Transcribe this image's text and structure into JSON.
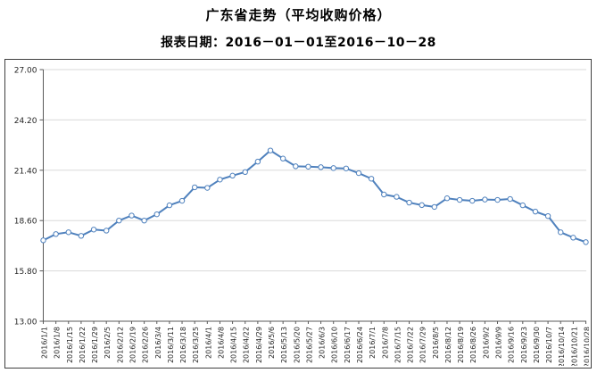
{
  "title": "广东省走势（平均收购价格）",
  "subtitle": "报表日期：2016－01－01至2016－10－28",
  "colors": {
    "line": "#4f81bd",
    "marker_fill": "#ffffff",
    "gridline": "#d9d9d9",
    "axis": "#595959",
    "frame": "#3f3f3f",
    "label_text": "#262626"
  },
  "chart_data": {
    "type": "line",
    "title": "广东省走势（平均收购价格）",
    "subtitle": "报表日期：2016－01－01至2016－10－28",
    "legend": "none",
    "grid": "horizontal",
    "marker": "open-circle",
    "ylim": [
      13.0,
      27.0
    ],
    "ytick_labels": [
      "27.00",
      "24.20",
      "21.40",
      "18.60",
      "15.80",
      "13.00"
    ],
    "ytick_values": [
      27.0,
      24.2,
      21.4,
      18.6,
      15.8,
      13.0
    ],
    "x": [
      "2016/1/1",
      "2016/1/8",
      "2016/1/15",
      "2016/1/22",
      "2016/1/29",
      "2016/2/5",
      "2016/2/12",
      "2016/2/19",
      "2016/2/26",
      "2016/3/4",
      "2016/3/11",
      "2016/3/18",
      "2016/3/25",
      "2016/4/1",
      "2016/4/8",
      "2016/4/15",
      "2016/4/22",
      "2016/4/29",
      "2016/5/6",
      "2016/5/13",
      "2016/5/20",
      "2016/5/27",
      "2016/6/3",
      "2016/6/10",
      "2016/6/17",
      "2016/6/24",
      "2016/7/1",
      "2016/7/8",
      "2016/7/15",
      "2016/7/22",
      "2016/7/29",
      "2016/8/5",
      "2016/8/12",
      "2016/8/19",
      "2016/8/26",
      "2016/9/2",
      "2016/9/9",
      "2016/9/16",
      "2016/9/23",
      "2016/9/30",
      "2016/10/7",
      "2016/10/14",
      "2016/10/21",
      "2016/10/28"
    ],
    "series": [
      {
        "name": "平均收购价格",
        "values": [
          17.5,
          17.85,
          17.95,
          17.75,
          18.1,
          18.04,
          18.6,
          18.88,
          18.6,
          18.95,
          19.45,
          19.7,
          20.45,
          20.42,
          20.88,
          21.1,
          21.3,
          21.88,
          22.5,
          22.05,
          21.62,
          21.6,
          21.57,
          21.52,
          21.5,
          21.24,
          20.93,
          20.05,
          19.92,
          19.6,
          19.46,
          19.36,
          19.84,
          19.75,
          19.7,
          19.77,
          19.75,
          19.8,
          19.45,
          19.1,
          18.85,
          17.95,
          17.65,
          17.4
        ]
      }
    ]
  }
}
